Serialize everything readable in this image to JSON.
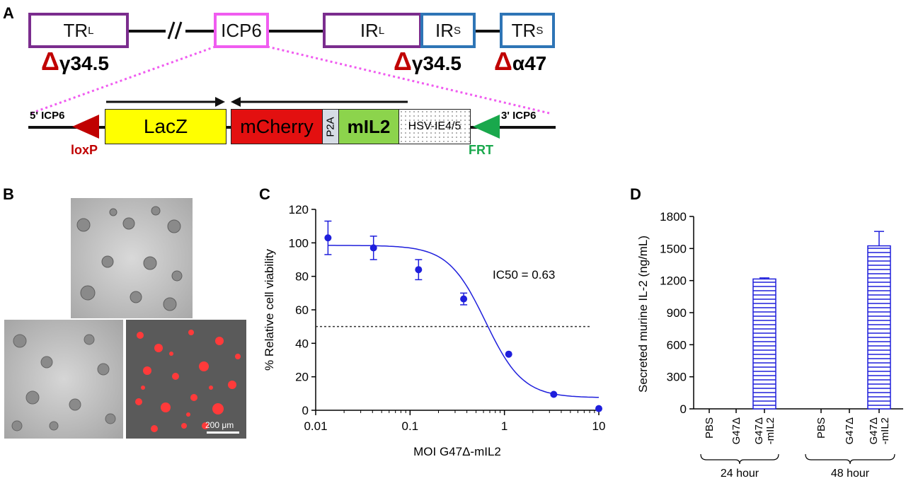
{
  "panels": {
    "a": "A",
    "b": "B",
    "c": "C",
    "d": "D"
  },
  "genome": {
    "trl": {
      "main": "TR",
      "sub": "L"
    },
    "icp6": "ICP6",
    "irl": {
      "main": "IR",
      "sub": "L"
    },
    "irs": {
      "main": "IR",
      "sub": "S"
    },
    "trs": {
      "main": "TR",
      "sub": "S"
    },
    "del1": {
      "sym": "Δ",
      "label": "γ34.5"
    },
    "del2": {
      "sym": "Δ",
      "label": "γ34.5"
    },
    "del3": {
      "sym": "Δ",
      "label": "α47"
    }
  },
  "cassette": {
    "left_end": "5' ICP6",
    "right_end": "3' ICP6",
    "lacz": "LacZ",
    "mcherry": "mCherry",
    "p2a": "P2A",
    "mil2": "mIL2",
    "promoter": "HSV-IE4/5",
    "loxp": "loxP",
    "frt": "FRT"
  },
  "colors": {
    "trl": "#7b2d8e",
    "icp6": "#f05cf0",
    "ir_blue": "#2e75b6",
    "del_red": "#c00000",
    "lacz": "#ffff00",
    "mcherry": "#e31010",
    "p2a": "#d6dce5",
    "mil2": "#8cd44c",
    "loxp": "#c00000",
    "frt": "#19a84c",
    "series": "#1f1fdc"
  },
  "micro": {
    "scale_bar": "200 μm"
  },
  "chart_c": {
    "type": "scatter",
    "ylabel": "% Relative cell viability",
    "xlabel": "MOI  G47Δ-mIL2",
    "annotation": "IC50 = 0.63",
    "x_scale": "log",
    "xlim": [
      0.01,
      10
    ],
    "ylim": [
      0,
      120
    ],
    "x_ticks": [
      {
        "v": 0.01,
        "l": "0.01"
      },
      {
        "v": 0.1,
        "l": "0.1"
      },
      {
        "v": 1,
        "l": "1"
      },
      {
        "v": 10,
        "l": "10"
      }
    ],
    "y_ticks": [
      0,
      20,
      40,
      60,
      80,
      100,
      120
    ],
    "points": [
      {
        "x": 0.0135,
        "y": 103,
        "err": 10
      },
      {
        "x": 0.041,
        "y": 97,
        "err": 7
      },
      {
        "x": 0.123,
        "y": 84,
        "err": 6
      },
      {
        "x": 0.37,
        "y": 66.5,
        "err": 3.5
      },
      {
        "x": 1.11,
        "y": 33.5,
        "err": 0
      },
      {
        "x": 3.33,
        "y": 9.5,
        "err": 0
      },
      {
        "x": 10,
        "y": 1,
        "err": 0
      }
    ],
    "fit": {
      "top": 98.5,
      "bottom": 7.5,
      "ic50": 0.63,
      "hill": 2.2
    },
    "reference_y": 50
  },
  "chart_d": {
    "type": "bar",
    "ylabel": "Secreted murine IL-2 (ng/mL)",
    "ylim": [
      0,
      1800
    ],
    "y_ticks": [
      0,
      300,
      600,
      900,
      1200,
      1500,
      1800
    ],
    "categories": [
      "PBS",
      "G47Δ",
      "G47Δ\n-mIL2",
      "PBS",
      "G47Δ",
      "G47Δ\n-mIL2"
    ],
    "values": [
      0,
      0,
      1215,
      0,
      0,
      1525
    ],
    "errors": [
      0,
      0,
      10,
      0,
      0,
      135
    ],
    "groups": [
      "24 hour",
      "48 hour"
    ]
  }
}
